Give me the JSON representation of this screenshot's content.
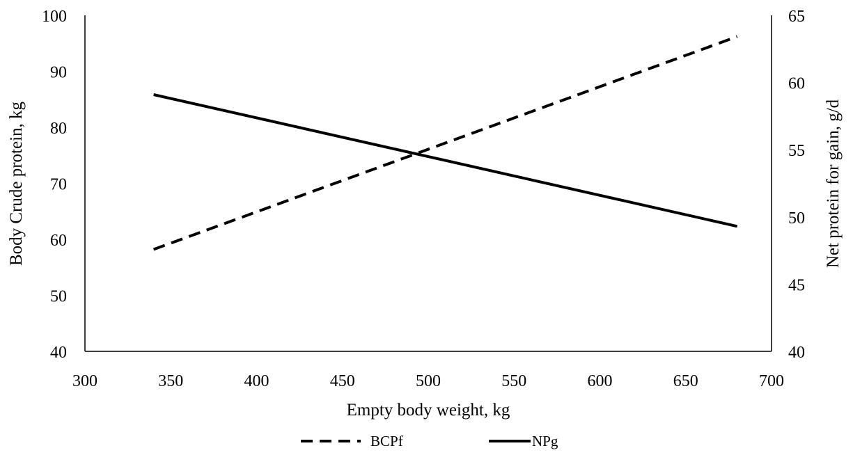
{
  "chart_data": {
    "type": "line",
    "title": "",
    "xlabel": "Empty body weight, kg",
    "ylabel": "Body  Crude protein, kg",
    "y2label": "Net protein for gain, g/d",
    "xlim": [
      300,
      700
    ],
    "ylim": [
      40,
      100
    ],
    "y2lim": [
      40,
      65
    ],
    "x_ticks": [
      "300",
      "350",
      "400",
      "450",
      "500",
      "550",
      "600",
      "650",
      "700"
    ],
    "y_ticks": [
      "40",
      "50",
      "60",
      "70",
      "80",
      "90",
      "100"
    ],
    "y2_ticks": [
      "40",
      "45",
      "50",
      "55",
      "60",
      "65"
    ],
    "grid": false,
    "legend_position": "bottom",
    "series": [
      {
        "name": "BCPf",
        "axis": "left",
        "style": "dashed",
        "color": "#000000",
        "x": [
          340,
          680
        ],
        "y": [
          58.2,
          96.2
        ]
      },
      {
        "name": "NPg",
        "axis": "right",
        "style": "solid",
        "color": "#000000",
        "x": [
          340,
          680
        ],
        "y": [
          59.1,
          49.3
        ]
      }
    ]
  }
}
